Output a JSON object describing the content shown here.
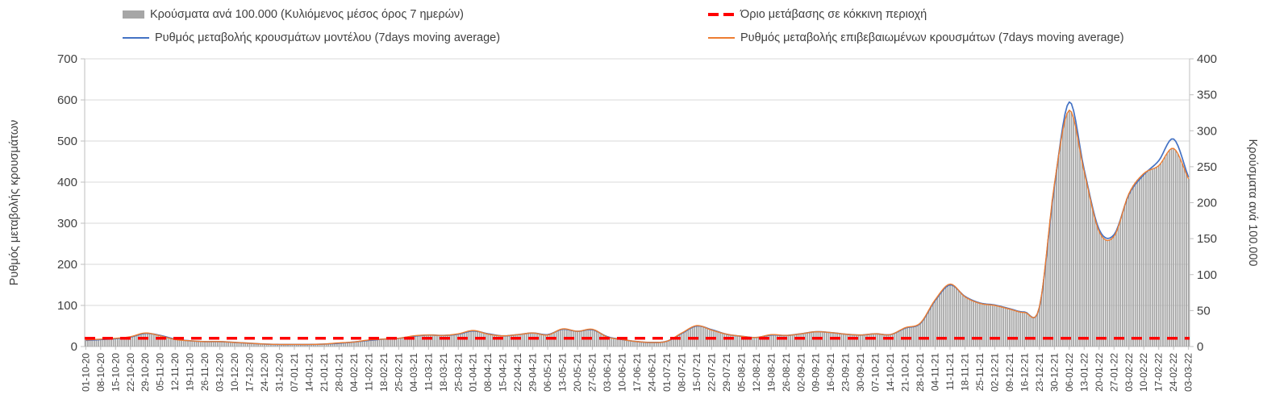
{
  "chart_data": {
    "type": "bar-line-combo",
    "title": "",
    "legend_position": "top",
    "grid": "horizontal",
    "x_tick_labels": [
      "01-10-20",
      "08-10-20",
      "15-10-20",
      "22-10-20",
      "29-10-20",
      "05-11-20",
      "12-11-20",
      "19-11-20",
      "26-11-20",
      "03-12-20",
      "10-12-20",
      "17-12-20",
      "24-12-20",
      "31-12-20",
      "07-01-21",
      "14-01-21",
      "21-01-21",
      "28-01-21",
      "04-02-21",
      "11-02-21",
      "18-02-21",
      "25-02-21",
      "04-03-21",
      "11-03-21",
      "18-03-21",
      "25-03-21",
      "01-04-21",
      "08-04-21",
      "15-04-21",
      "22-04-21",
      "29-04-21",
      "06-05-21",
      "13-05-21",
      "20-05-21",
      "27-05-21",
      "03-06-21",
      "10-06-21",
      "17-06-21",
      "24-06-21",
      "01-07-21",
      "08-07-21",
      "15-07-21",
      "22-07-21",
      "29-07-21",
      "05-08-21",
      "12-08-21",
      "19-08-21",
      "26-08-21",
      "02-09-21",
      "09-09-21",
      "16-09-21",
      "23-09-21",
      "30-09-21",
      "07-10-21",
      "14-10-21",
      "21-10-21",
      "28-10-21",
      "04-11-21",
      "11-11-21",
      "18-11-21",
      "25-11-21",
      "02-12-21",
      "09-12-21",
      "16-12-21",
      "23-12-21",
      "30-12-21",
      "06-01-22",
      "13-01-22",
      "20-01-22",
      "27-01-22",
      "03-02-22",
      "10-02-22",
      "17-02-22",
      "24-02-22",
      "03-03-22"
    ],
    "left_axis": {
      "label": "Ρυθμός μεταβολής κρουσμάτων",
      "min": 0,
      "max": 700,
      "step": 100,
      "tick_labels": [
        "0",
        "100",
        "200",
        "300",
        "400",
        "500",
        "600",
        "700"
      ]
    },
    "right_axis": {
      "label": "Κρούσματα ανά 100.000",
      "min": 0,
      "max": 400,
      "step": 50,
      "tick_labels": [
        "0",
        "50",
        "100",
        "150",
        "200",
        "250",
        "300",
        "350",
        "400"
      ]
    },
    "bars": {
      "name": "Κρούσματα ανά 100.000 (Κυλιόμενος μέσος όρος 7 ημερών)",
      "axis": "right",
      "color": "#a6a6a6",
      "values": [
        9,
        10,
        11,
        14,
        19,
        15,
        10,
        8,
        7,
        7,
        6,
        5,
        3,
        3,
        3,
        3,
        3,
        5,
        6,
        9,
        10,
        11,
        15,
        16,
        15,
        18,
        22,
        17,
        15,
        17,
        19,
        16,
        25,
        21,
        24,
        13,
        10,
        7,
        6,
        7,
        19,
        29,
        23,
        17,
        14,
        13,
        17,
        15,
        18,
        21,
        19,
        17,
        16,
        18,
        17,
        26,
        33,
        65,
        87,
        69,
        60,
        57,
        52,
        47,
        55,
        226,
        329,
        243,
        160,
        153,
        213,
        241,
        251,
        275,
        233
      ]
    },
    "threshold": {
      "name": "Όριο μετάβασης σε κόκκινη περιοχή",
      "axis": "left",
      "value": 20,
      "style": "dashed",
      "color": "#ff0000"
    },
    "lines": [
      {
        "name": "Ρυθμός μεταβολής κρουσμάτων μοντέλου (7days moving average)",
        "axis": "left",
        "color": "#4472c4",
        "values": [
          15,
          17,
          19,
          23,
          32,
          27,
          18,
          14,
          12,
          12,
          10,
          8,
          6,
          5,
          5,
          5,
          6,
          8,
          11,
          15,
          18,
          20,
          25,
          28,
          27,
          30,
          38,
          31,
          26,
          29,
          33,
          29,
          42,
          37,
          41,
          24,
          17,
          12,
          10,
          13,
          32,
          50,
          41,
          30,
          25,
          22,
          28,
          27,
          31,
          36,
          34,
          30,
          28,
          31,
          29,
          45,
          56,
          112,
          150,
          122,
          106,
          101,
          92,
          84,
          96,
          390,
          595,
          430,
          285,
          272,
          370,
          418,
          452,
          505,
          412
        ]
      },
      {
        "name": "Ρυθμός μεταβολής επιβεβαιωμένων κρουσμάτων (7days moving average)",
        "axis": "left",
        "color": "#ed7d31",
        "values": [
          16,
          18,
          20,
          24,
          33,
          26,
          17,
          14,
          12,
          12,
          10,
          8,
          6,
          5,
          5,
          5,
          6,
          9,
          11,
          16,
          18,
          20,
          26,
          28,
          27,
          31,
          39,
          30,
          26,
          29,
          33,
          28,
          43,
          37,
          42,
          23,
          17,
          12,
          10,
          13,
          33,
          51,
          40,
          30,
          25,
          22,
          29,
          27,
          31,
          36,
          34,
          30,
          28,
          31,
          29,
          46,
          57,
          114,
          152,
          121,
          105,
          100,
          91,
          83,
          97,
          395,
          575,
          425,
          280,
          268,
          372,
          421,
          440,
          482,
          408
        ]
      }
    ],
    "colors": {
      "gridline": "#d9d9d9",
      "axis_line": "#bfbfbf",
      "text": "#404040",
      "background": "#ffffff"
    }
  }
}
